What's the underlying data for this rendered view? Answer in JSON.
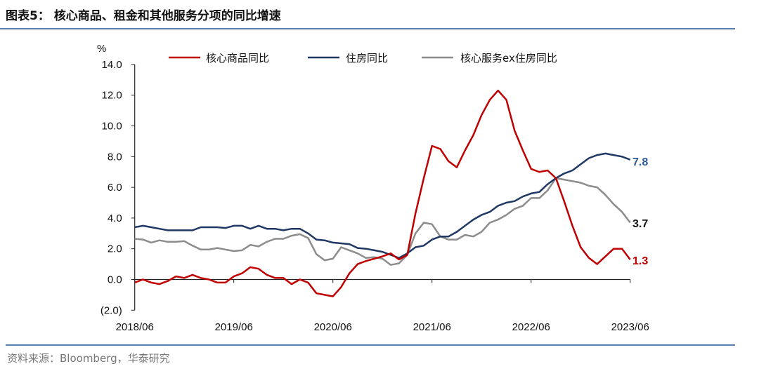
{
  "title": "图表5： 核心商品、租金和其他服务分项的同比增速",
  "source": "资料来源：Bloomberg，华泰研究",
  "chart_data": {
    "type": "line",
    "title": "图表5： 核心商品、租金和其他服务分项的同比增速",
    "ylabel": "%",
    "xlabel": "",
    "ylim": [
      -2,
      14
    ],
    "yticks": [
      14,
      12,
      10,
      8,
      6,
      4,
      2,
      0,
      -2
    ],
    "ytick_labels": [
      "14.0",
      "12.0",
      "10.0",
      "8.0",
      "6.0",
      "4.0",
      "2.0",
      "0.0",
      "(2.0)"
    ],
    "x_start": "2018/06",
    "x_end": "2023/06",
    "x_frequency": "monthly",
    "xtick_labels": [
      "2018/06",
      "2019/06",
      "2020/06",
      "2021/06",
      "2022/06",
      "2023/06"
    ],
    "grid": false,
    "legend_position": "top",
    "series": [
      {
        "name": "核心商品同比",
        "color": "#c00000",
        "end_label": "1.3",
        "values": [
          -0.2,
          0.0,
          -0.2,
          -0.3,
          -0.1,
          0.2,
          0.1,
          0.3,
          0.1,
          0.0,
          -0.2,
          -0.2,
          0.2,
          0.4,
          0.8,
          0.7,
          0.3,
          0.1,
          0.1,
          -0.3,
          0.0,
          -0.2,
          -0.9,
          -1.0,
          -1.1,
          -0.5,
          0.4,
          1.0,
          1.2,
          1.35,
          1.5,
          1.7,
          1.3,
          1.6,
          4.3,
          6.6,
          8.7,
          8.5,
          7.7,
          7.3,
          8.4,
          9.4,
          10.7,
          11.7,
          12.3,
          11.7,
          9.7,
          8.4,
          7.2,
          7.0,
          7.1,
          6.6,
          5.1,
          3.5,
          2.1,
          1.4,
          1.0,
          1.5,
          2.0,
          2.0,
          1.3
        ]
      },
      {
        "name": "住房同比",
        "color": "#1f3864",
        "end_label": "7.8",
        "values": [
          3.4,
          3.5,
          3.4,
          3.3,
          3.2,
          3.2,
          3.2,
          3.2,
          3.4,
          3.4,
          3.4,
          3.35,
          3.5,
          3.5,
          3.3,
          3.5,
          3.3,
          3.3,
          3.2,
          3.3,
          3.3,
          3.0,
          2.6,
          2.55,
          2.4,
          2.35,
          2.3,
          2.05,
          2.0,
          1.9,
          1.8,
          1.6,
          1.4,
          1.7,
          2.1,
          2.2,
          2.6,
          2.8,
          2.8,
          3.1,
          3.5,
          3.9,
          4.2,
          4.4,
          4.8,
          5.0,
          5.1,
          5.4,
          5.6,
          5.7,
          6.2,
          6.6,
          6.9,
          7.1,
          7.5,
          7.9,
          8.1,
          8.2,
          8.1,
          8.0,
          7.8
        ]
      },
      {
        "name": "核心服务ex住房同比",
        "color": "#8c8c8c",
        "end_label": "3.7",
        "values": [
          2.65,
          2.6,
          2.4,
          2.55,
          2.45,
          2.45,
          2.5,
          2.2,
          1.95,
          1.95,
          2.05,
          1.95,
          1.85,
          1.9,
          2.25,
          2.15,
          2.45,
          2.65,
          2.65,
          2.85,
          2.95,
          2.7,
          1.65,
          1.25,
          1.35,
          2.1,
          1.9,
          1.7,
          1.4,
          1.45,
          1.35,
          0.95,
          1.05,
          1.6,
          3.0,
          3.7,
          3.6,
          2.8,
          2.6,
          2.6,
          2.9,
          2.8,
          3.1,
          3.7,
          3.9,
          4.2,
          4.6,
          4.8,
          5.3,
          5.3,
          5.8,
          6.6,
          6.5,
          6.4,
          6.3,
          6.1,
          6.0,
          5.5,
          4.9,
          4.4,
          3.7
        ]
      }
    ]
  }
}
